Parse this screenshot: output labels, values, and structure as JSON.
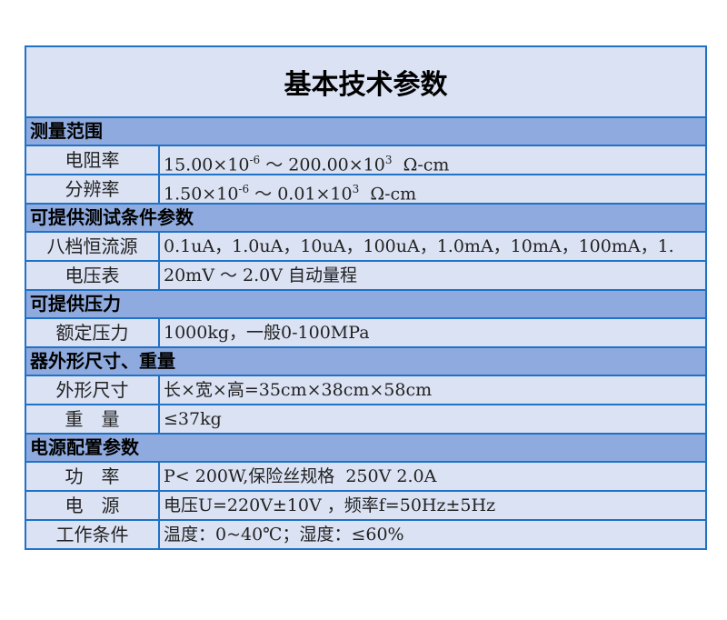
{
  "title": "基本技术参数",
  "sections": [
    {
      "heading": "测量范围",
      "rows": [
        {
          "label": "电阻率",
          "value_parts": [
            "15.00×10",
            "-6",
            " ～ 200.00×10",
            "3",
            "  Ω-cm"
          ]
        },
        {
          "label": "分辨率",
          "value_parts": [
            "1.50×10",
            "-6",
            " ～ 0.01×10",
            "3",
            "  Ω-cm"
          ]
        }
      ]
    },
    {
      "heading": "可提供测试条件参数",
      "rows": [
        {
          "label": "八档恒流源",
          "value": "0.1uA，1.0uA，10uA，100uA，1.0mA，10mA，100mA，1."
        },
        {
          "label": "电压表",
          "value": "20mV ～ 2.0V 自动量程"
        }
      ]
    },
    {
      "heading": "可提供压力",
      "rows": [
        {
          "label": "额定压力",
          "value": "1000kg，一般0-100MPa"
        }
      ]
    },
    {
      "heading": "器外形尺寸、重量",
      "rows": [
        {
          "label": "外形尺寸",
          "value": "长×宽×高=35cm×38cm×58cm"
        },
        {
          "label": "重　量",
          "value": "≤37kg"
        }
      ]
    },
    {
      "heading": "电源配置参数",
      "rows": [
        {
          "label": "功　率",
          "value": "P< 200W,保险丝规格  250V 2.0A"
        },
        {
          "label": "电　源",
          "value": "电压U=220V±10V ，频率f=50Hz±5Hz"
        },
        {
          "label": "工作条件",
          "value": "温度：0~40℃；湿度：≤60%"
        }
      ]
    }
  ],
  "colors": {
    "border": "#1f72c6",
    "cell": "#dbe2f3",
    "section": "#8eaade"
  }
}
